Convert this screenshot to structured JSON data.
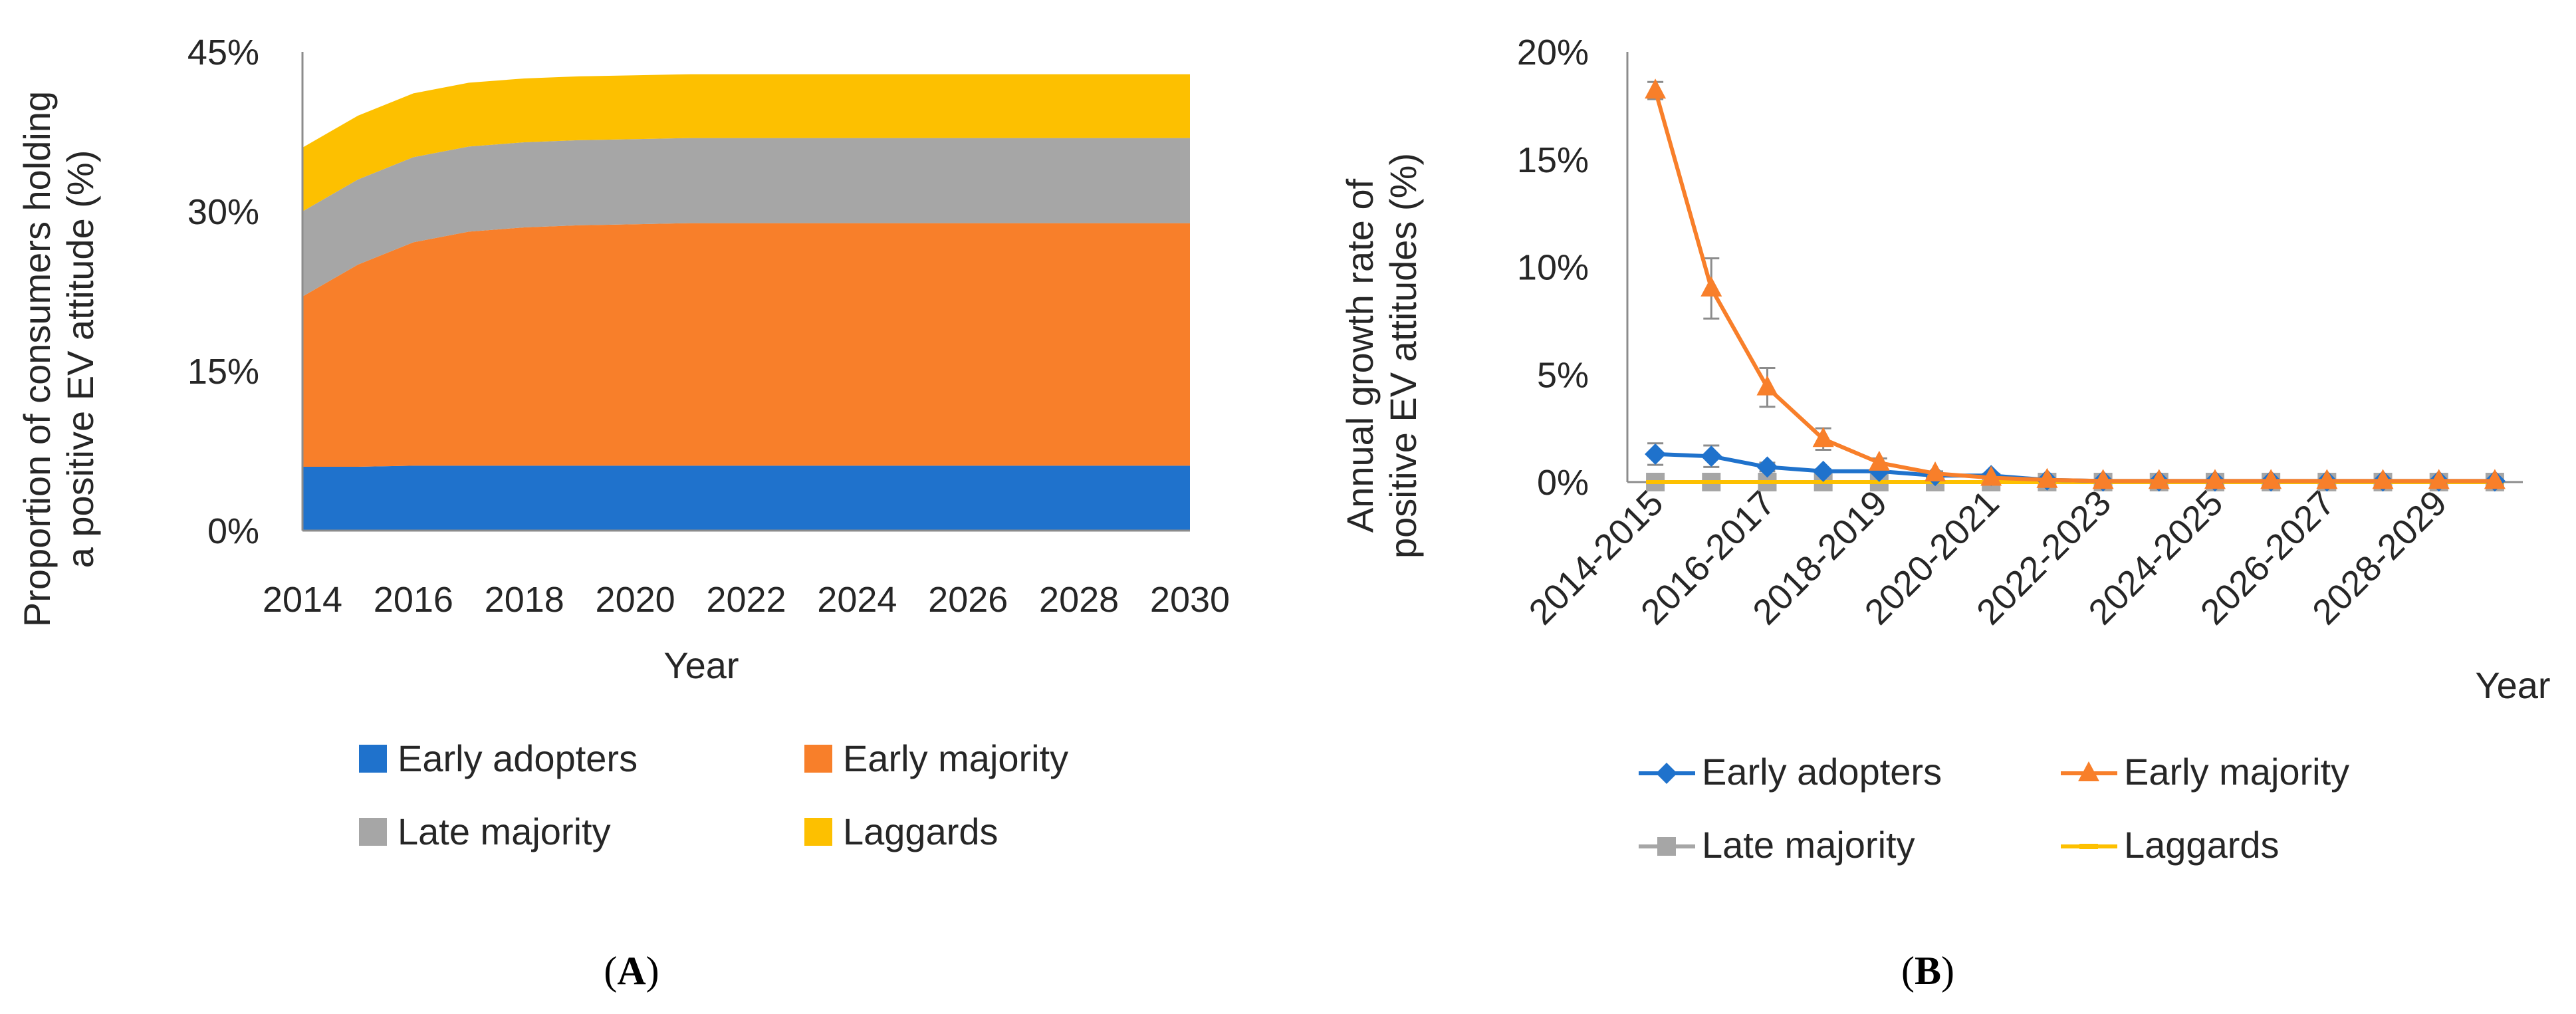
{
  "panel_labels": {
    "a": {
      "open": "(",
      "letter": "A",
      "close": ")"
    },
    "b": {
      "open": "(",
      "letter": "B",
      "close": ")"
    }
  },
  "colors": {
    "early_adopters": "#1f72cc",
    "early_majority": "#f87f2a",
    "late_majority": "#a6a6a6",
    "laggards": "#fdc000",
    "axis": "#8c8c8c",
    "text": "#262626"
  },
  "chart_data": [
    {
      "type": "area",
      "stacked": true,
      "ylabel_lines": [
        "Proportion of consumers holding",
        "a positive EV attitude (%)"
      ],
      "xlabel": "Year",
      "yticks": [
        "0%",
        "15%",
        "30%",
        "45%"
      ],
      "ytick_values": [
        0,
        15,
        30,
        45
      ],
      "ylim": [
        0,
        45
      ],
      "xlim": [
        2014,
        2030
      ],
      "xtick_labels": [
        "2014",
        "2016",
        "2018",
        "2020",
        "2022",
        "2024",
        "2026",
        "2028",
        "2030"
      ],
      "xtick_values": [
        2014,
        2016,
        2018,
        2020,
        2022,
        2024,
        2026,
        2028,
        2030
      ],
      "x": [
        2014,
        2015,
        2016,
        2017,
        2018,
        2019,
        2020,
        2021,
        2022,
        2023,
        2024,
        2025,
        2026,
        2027,
        2028,
        2029,
        2030
      ],
      "series": [
        {
          "name": "Early adopters",
          "key": "early_adopters",
          "values": [
            6.0,
            6.0,
            6.1,
            6.1,
            6.1,
            6.1,
            6.1,
            6.1,
            6.1,
            6.1,
            6.1,
            6.1,
            6.1,
            6.1,
            6.1,
            6.1,
            6.1
          ]
        },
        {
          "name": "Early majority",
          "key": "early_majority",
          "values": [
            16.0,
            19.0,
            21.0,
            22.0,
            22.4,
            22.6,
            22.7,
            22.8,
            22.8,
            22.8,
            22.8,
            22.8,
            22.8,
            22.8,
            22.8,
            22.8,
            22.8
          ]
        },
        {
          "name": "Late majority",
          "key": "late_majority",
          "values": [
            8.0,
            8.0,
            8.0,
            8.0,
            8.0,
            8.0,
            8.0,
            8.0,
            8.0,
            8.0,
            8.0,
            8.0,
            8.0,
            8.0,
            8.0,
            8.0,
            8.0
          ]
        },
        {
          "name": "Laggards",
          "key": "laggards",
          "values": [
            6.0,
            6.0,
            6.0,
            6.0,
            6.0,
            6.0,
            6.0,
            6.0,
            6.0,
            6.0,
            6.0,
            6.0,
            6.0,
            6.0,
            6.0,
            6.0,
            6.0
          ]
        }
      ],
      "legend": [
        "Early adopters",
        "Early majority",
        "Late majority",
        "Laggards"
      ],
      "legend_position": "bottom"
    },
    {
      "type": "line",
      "ylabel_lines": [
        "Annual growth rate of",
        "positive EV attitudes (%)"
      ],
      "xlabel": "Year",
      "yticks": [
        "0%",
        "5%",
        "10%",
        "15%",
        "20%"
      ],
      "ytick_values": [
        0,
        5,
        10,
        15,
        20
      ],
      "ylim": [
        0,
        20
      ],
      "categories": [
        "2014-2015",
        "2015-2016",
        "2016-2017",
        "2017-2018",
        "2018-2019",
        "2019-2020",
        "2020-2021",
        "2021-2022",
        "2022-2023",
        "2023-2024",
        "2024-2025",
        "2025-2026",
        "2026-2027",
        "2027-2028",
        "2028-2029",
        "2029-2030"
      ],
      "xtick_labels": [
        "2014-2015",
        "2016-2017",
        "2018-2019",
        "2020-2021",
        "2022-2023",
        "2024-2025",
        "2026-2027",
        "2028-2029"
      ],
      "xtick_indices": [
        0,
        2,
        4,
        6,
        8,
        10,
        12,
        14
      ],
      "series": [
        {
          "name": "Early adopters",
          "key": "early_adopters",
          "marker": "diamond",
          "values": [
            1.3,
            1.2,
            0.7,
            0.5,
            0.5,
            0.3,
            0.3,
            0.1,
            0.05,
            0.05,
            0.05,
            0.05,
            0.05,
            0.05,
            0.05,
            0.05
          ],
          "errors": [
            0.5,
            0.5,
            0.2,
            0.1,
            0.1,
            0.1,
            0.1,
            0,
            0,
            0,
            0,
            0,
            0,
            0,
            0,
            0
          ]
        },
        {
          "name": "Early majority",
          "key": "early_majority",
          "marker": "triangle",
          "values": [
            18.2,
            9.0,
            4.4,
            2.0,
            0.9,
            0.4,
            0.2,
            0.1,
            0.05,
            0.05,
            0.05,
            0.05,
            0.05,
            0.05,
            0.05,
            0.05
          ],
          "errors": [
            0.4,
            1.4,
            0.9,
            0.5,
            0.2,
            0.1,
            0,
            0,
            0,
            0,
            0,
            0,
            0,
            0,
            0,
            0
          ]
        },
        {
          "name": "Late majority",
          "key": "late_majority",
          "marker": "square",
          "values": [
            0,
            0,
            0,
            0,
            0,
            0,
            0,
            0,
            0,
            0,
            0,
            0,
            0,
            0,
            0,
            0
          ],
          "errors": [
            0,
            0,
            0,
            0,
            0,
            0,
            0,
            0,
            0,
            0,
            0,
            0,
            0,
            0,
            0,
            0
          ]
        },
        {
          "name": "Laggards",
          "key": "laggards",
          "marker": "dash",
          "values": [
            0,
            0,
            0,
            0,
            0,
            0,
            0,
            0,
            0,
            0,
            0,
            0,
            0,
            0,
            0,
            0
          ],
          "errors": [
            0,
            0,
            0,
            0,
            0,
            0,
            0,
            0,
            0,
            0,
            0,
            0,
            0,
            0,
            0,
            0
          ]
        }
      ],
      "legend": [
        "Early adopters",
        "Early majority",
        "Late majority",
        "Laggards"
      ],
      "legend_position": "bottom"
    }
  ]
}
